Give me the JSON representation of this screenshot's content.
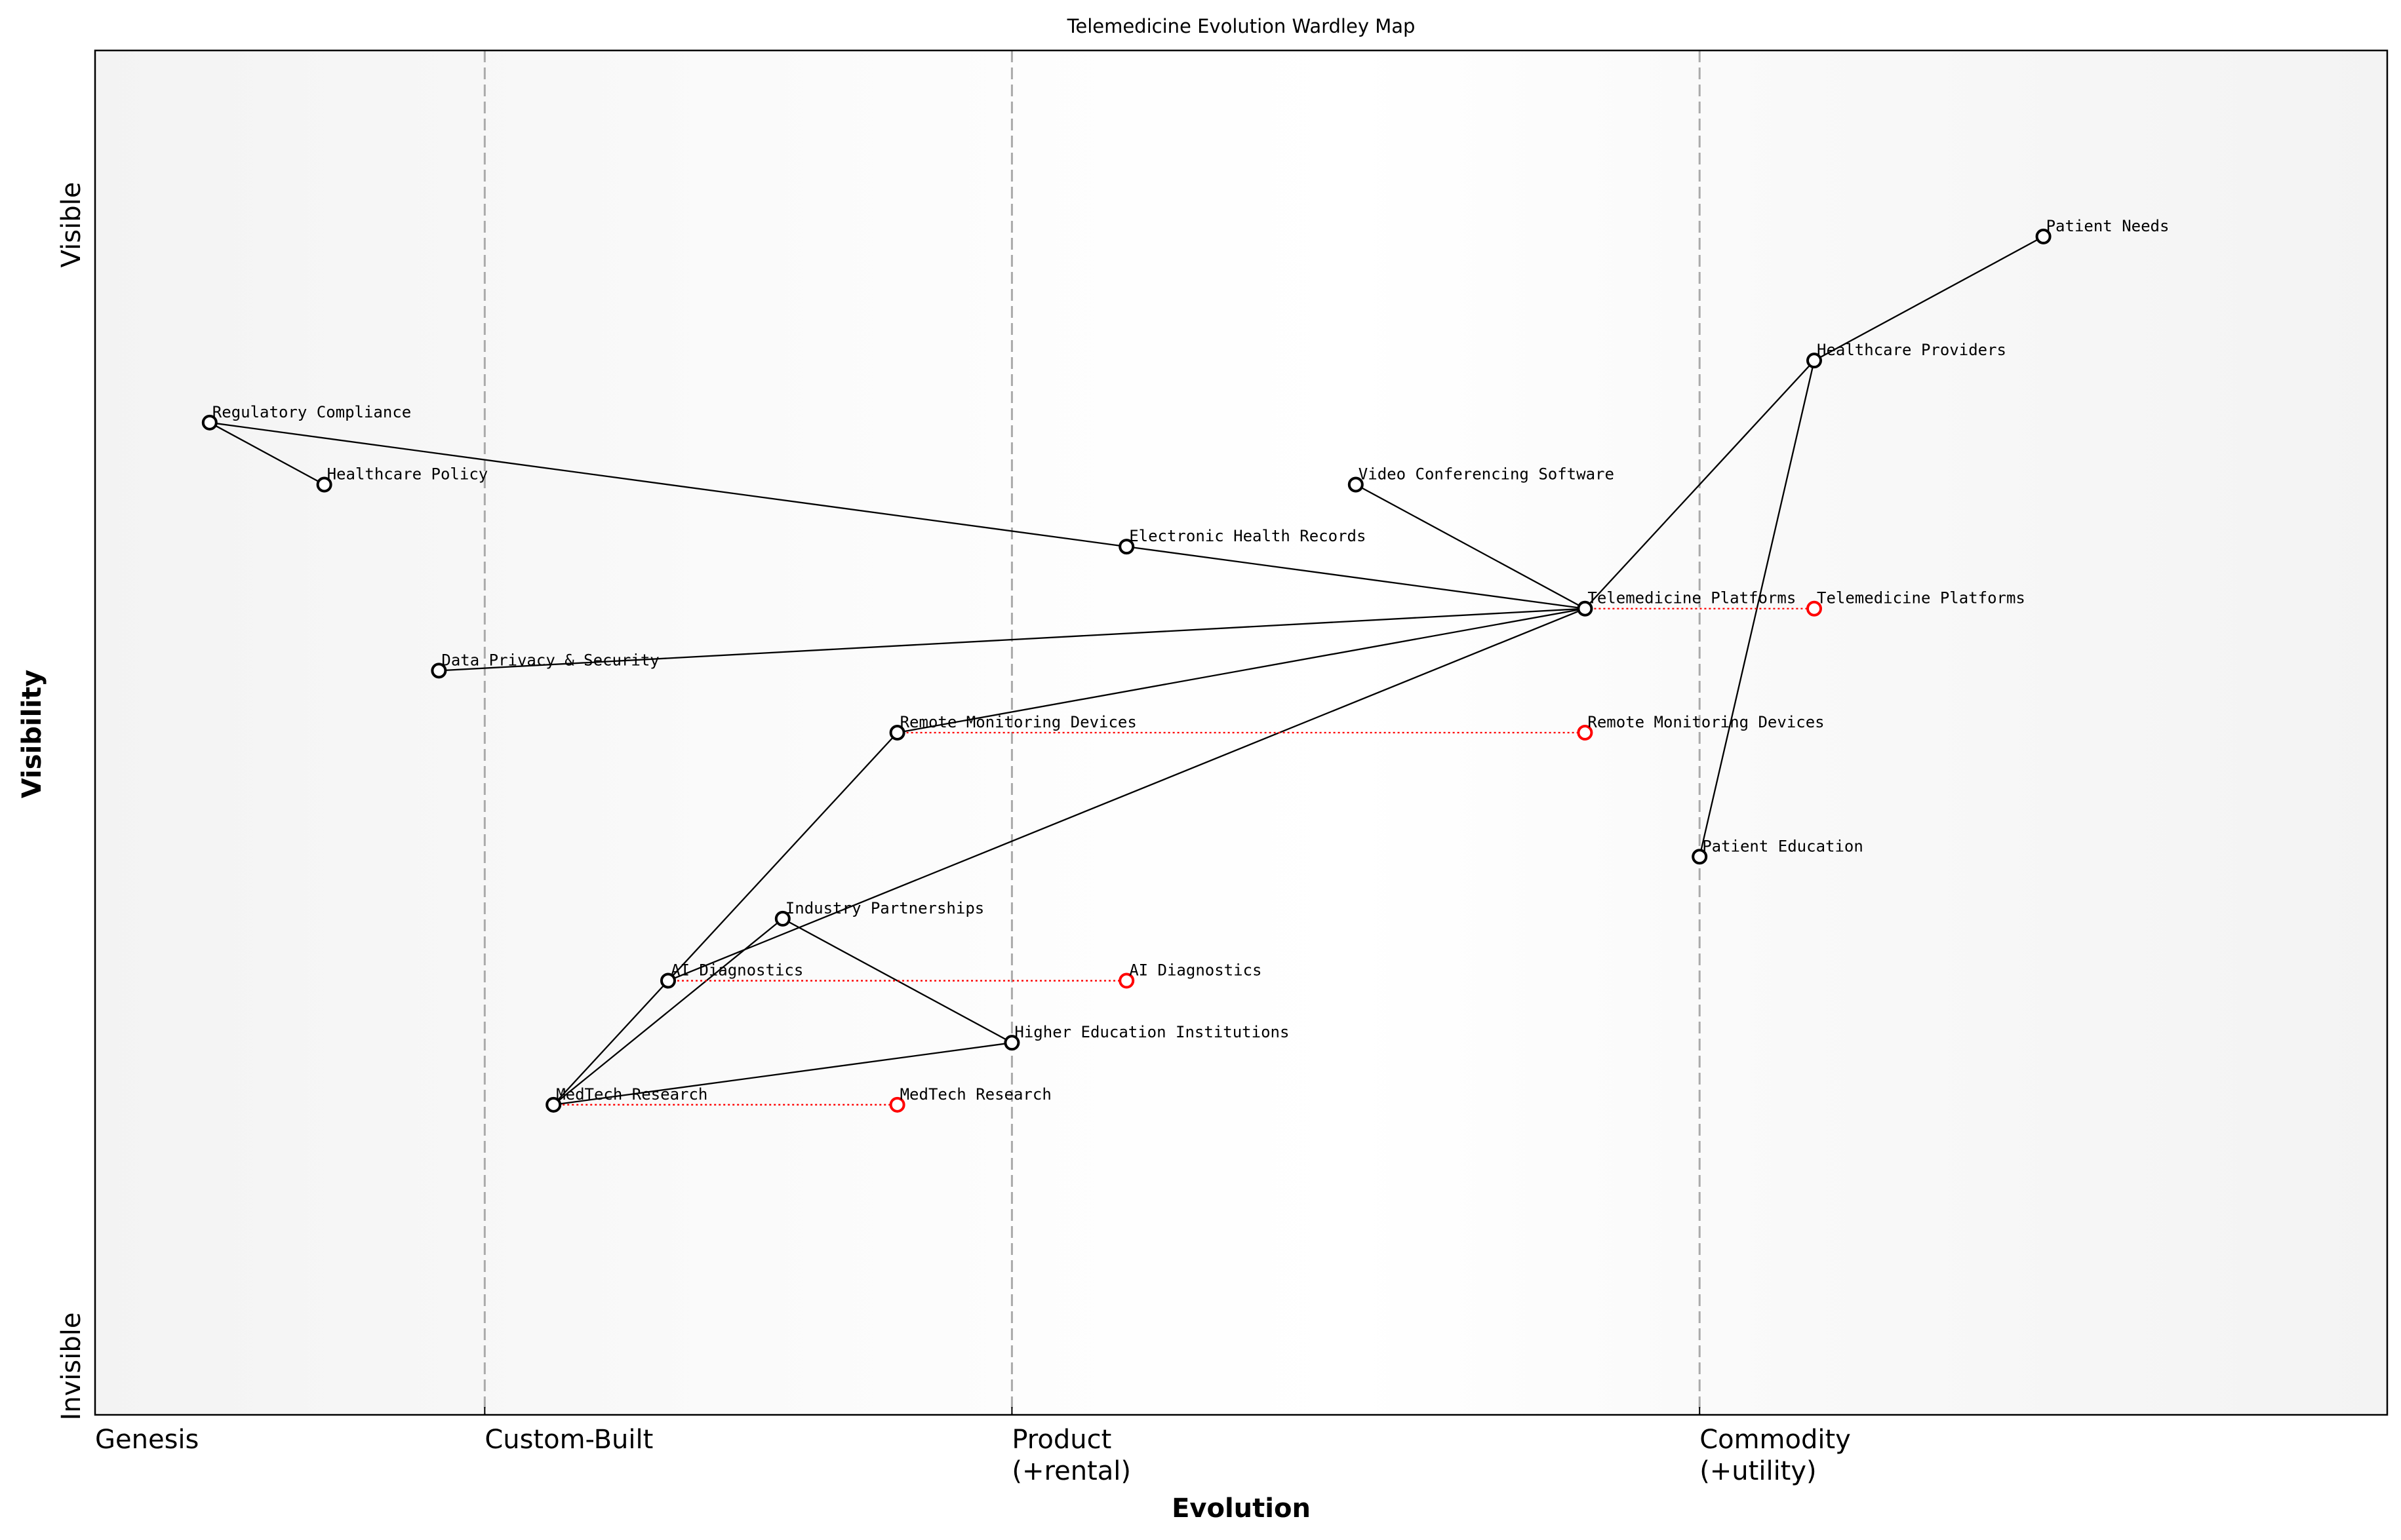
{
  "title": "Telemedicine Evolution Wardley Map",
  "x_axis": {
    "label": "Evolution",
    "stages": [
      {
        "value": 0,
        "lines": [
          "Genesis"
        ]
      },
      {
        "value": 0.17,
        "lines": [
          "Custom-Built"
        ]
      },
      {
        "value": 0.4,
        "lines": [
          "Product",
          "(+rental)"
        ]
      },
      {
        "value": 0.7,
        "lines": [
          "Commodity",
          "(+utility)"
        ]
      }
    ],
    "range": [
      0,
      1
    ]
  },
  "y_axis": {
    "label": "Visibility",
    "top_label": "Visible",
    "bottom_label": "Invisible",
    "range": [
      0,
      1.1
    ]
  },
  "colors": {
    "node": "#000000",
    "evolution": "#ff0000",
    "stage_line": "#aaaaaa"
  },
  "components": [
    {
      "name": "Patient Needs",
      "evolution": 0.85,
      "visibility": 0.95
    },
    {
      "name": "Healthcare Providers",
      "evolution": 0.75,
      "visibility": 0.85
    },
    {
      "name": "Regulatory Compliance",
      "evolution": 0.05,
      "visibility": 0.8
    },
    {
      "name": "Healthcare Policy",
      "evolution": 0.1,
      "visibility": 0.75
    },
    {
      "name": "Video Conferencing Software",
      "evolution": 0.55,
      "visibility": 0.75
    },
    {
      "name": "Electronic Health Records",
      "evolution": 0.45,
      "visibility": 0.7
    },
    {
      "name": "Telemedicine Platforms",
      "evolution": 0.65,
      "visibility": 0.65
    },
    {
      "name": "Data Privacy & Security",
      "evolution": 0.15,
      "visibility": 0.6
    },
    {
      "name": "Remote Monitoring Devices",
      "evolution": 0.35,
      "visibility": 0.55
    },
    {
      "name": "Patient Education",
      "evolution": 0.7,
      "visibility": 0.45
    },
    {
      "name": "Industry Partnerships",
      "evolution": 0.3,
      "visibility": 0.4
    },
    {
      "name": "AI Diagnostics",
      "evolution": 0.25,
      "visibility": 0.35
    },
    {
      "name": "Higher Education Institutions",
      "evolution": 0.4,
      "visibility": 0.3
    },
    {
      "name": "MedTech Research",
      "evolution": 0.2,
      "visibility": 0.25
    }
  ],
  "links": [
    [
      "Patient Needs",
      "Healthcare Providers"
    ],
    [
      "Healthcare Providers",
      "Telemedicine Platforms"
    ],
    [
      "Healthcare Providers",
      "Patient Education"
    ],
    [
      "Telemedicine Platforms",
      "Video Conferencing Software"
    ],
    [
      "Telemedicine Platforms",
      "Electronic Health Records"
    ],
    [
      "Telemedicine Platforms",
      "Data Privacy & Security"
    ],
    [
      "Telemedicine Platforms",
      "Remote Monitoring Devices"
    ],
    [
      "Telemedicine Platforms",
      "AI Diagnostics"
    ],
    [
      "Electronic Health Records",
      "Regulatory Compliance"
    ],
    [
      "Regulatory Compliance",
      "Healthcare Policy"
    ],
    [
      "Remote Monitoring Devices",
      "AI Diagnostics"
    ],
    [
      "AI Diagnostics",
      "MedTech Research"
    ],
    [
      "MedTech Research",
      "Industry Partnerships"
    ],
    [
      "Industry Partnerships",
      "Higher Education Institutions"
    ],
    [
      "MedTech Research",
      "Higher Education Institutions"
    ]
  ],
  "evolutions": [
    {
      "name": "Telemedicine Platforms",
      "to": 0.75
    },
    {
      "name": "Remote Monitoring Devices",
      "to": 0.65
    },
    {
      "name": "AI Diagnostics",
      "to": 0.45
    },
    {
      "name": "MedTech Research",
      "to": 0.35
    }
  ]
}
